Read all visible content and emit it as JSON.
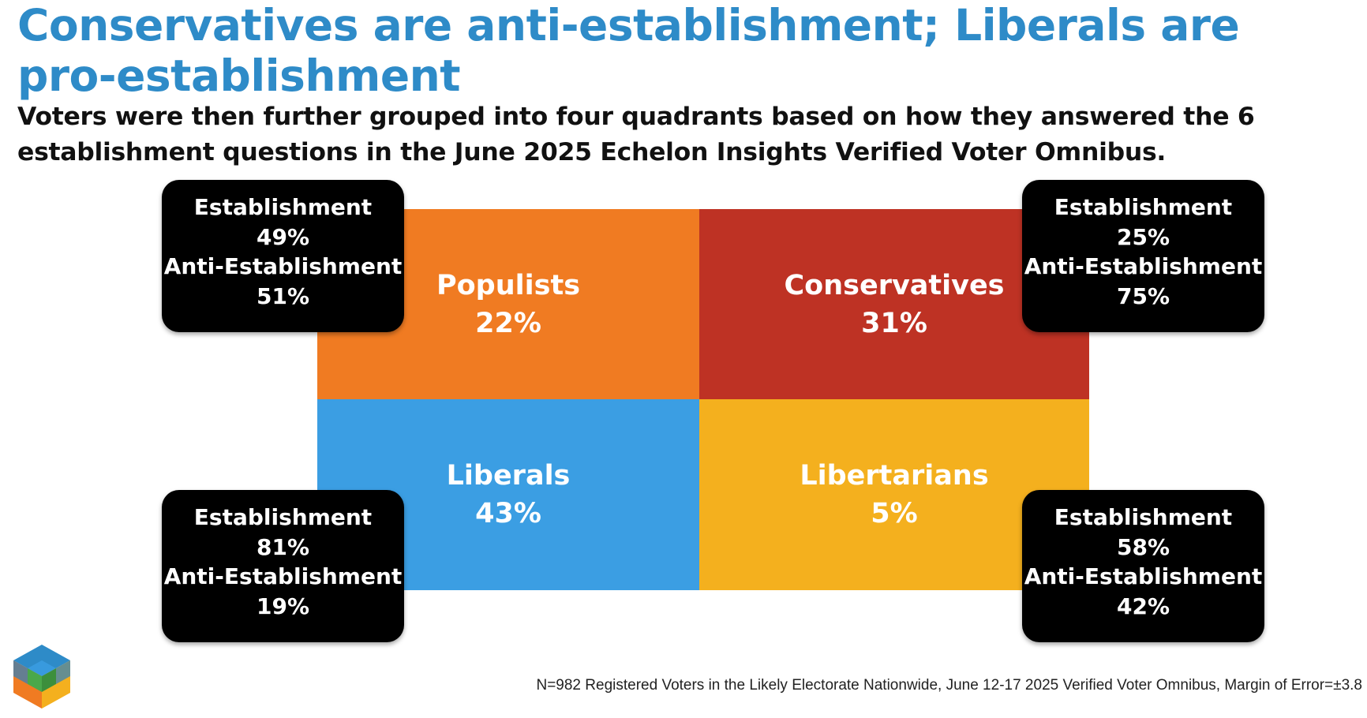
{
  "title": "Conservatives are anti-establishment; Liberals are pro-establishment",
  "subtitle": "Voters were then further grouped into four quadrants based on how they answered the 6 establishment questions in the June 2025 Echelon Insights Verified Voter Omnibus.",
  "colors": {
    "title": "#2e8bc8",
    "populists": "#f07b22",
    "conservatives": "#be3224",
    "liberals": "#3b9ee3",
    "libertarians": "#f4b01e",
    "box": "#000000"
  },
  "chart_data": {
    "type": "table",
    "title": "Conservatives are anti-establishment; Liberals are pro-establishment",
    "quadrants": [
      {
        "name": "Populists",
        "share": "22%",
        "position": "top-left",
        "establishment_label": "Establishment",
        "establishment": "49%",
        "anti_label": "Anti-Establishment",
        "anti": "51%"
      },
      {
        "name": "Conservatives",
        "share": "31%",
        "position": "top-right",
        "establishment_label": "Establishment",
        "establishment": "25%",
        "anti_label": "Anti-Establishment",
        "anti": "75%"
      },
      {
        "name": "Liberals",
        "share": "43%",
        "position": "bottom-left",
        "establishment_label": "Establishment",
        "establishment": "81%",
        "anti_label": "Anti-Establishment",
        "anti": "19%"
      },
      {
        "name": "Libertarians",
        "share": "5%",
        "position": "bottom-right",
        "establishment_label": "Establishment",
        "establishment": "58%",
        "anti_label": "Anti-Establishment",
        "anti": "42%"
      }
    ]
  },
  "footnote": "N=982 Registered Voters in the Likely Electorate Nationwide, June 12-17 2025 Verified Voter Omnibus, Margin of Error=±3.8",
  "logo_icon": "cube-logo-icon"
}
